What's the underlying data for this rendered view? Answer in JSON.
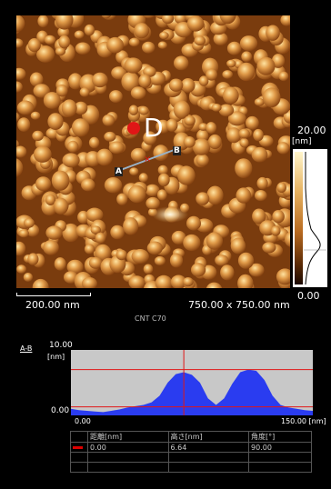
{
  "image": {
    "scan_size": "750.00 x 750.00 nm",
    "scale_bar": "200.00 nm",
    "sample": "CNT C70",
    "color_scale": {
      "max": "20.00",
      "unit": "[nm]",
      "min": "0.00"
    },
    "marker_label": "D",
    "point_a": "A",
    "point_b": "B"
  },
  "profile": {
    "title": "A-B",
    "y_max": "10.00",
    "y_unit": "[nm]",
    "y_min": "0.00",
    "x_min": "0.00",
    "x_max": "150.00 [nm]",
    "fill_color": "#2a3cf0",
    "cursor_color": "#e01616"
  },
  "table": {
    "headers": [
      "",
      "距離[nm]",
      "高さ[nm]",
      "角度[°]"
    ],
    "rows": [
      [
        "",
        "0.00",
        "6.64",
        "90.00"
      ],
      [
        "",
        "",
        "",
        ""
      ],
      [
        "",
        "",
        "",
        ""
      ]
    ]
  },
  "chart_data": {
    "type": "area",
    "xlabel": "",
    "ylabel": "",
    "xlim": [
      0,
      150
    ],
    "ylim": [
      0,
      10
    ],
    "x": [
      0,
      5,
      10,
      15,
      20,
      25,
      30,
      35,
      40,
      45,
      50,
      55,
      60,
      65,
      70,
      75,
      80,
      85,
      90,
      95,
      100,
      105,
      110,
      115,
      120,
      125,
      130,
      135,
      140,
      145,
      150
    ],
    "series": [
      {
        "values": [
          1.0,
          0.8,
          0.7,
          0.6,
          0.5,
          0.7,
          0.9,
          1.2,
          1.4,
          1.6,
          2.0,
          3.0,
          5.0,
          6.3,
          6.6,
          6.2,
          5.0,
          2.6,
          1.6,
          2.6,
          4.8,
          6.6,
          7.0,
          6.8,
          5.4,
          3.0,
          1.6,
          1.2,
          1.0,
          0.8,
          0.7
        ]
      }
    ],
    "cursor_x": 70,
    "hlines": [
      7.0,
      1.3
    ]
  }
}
